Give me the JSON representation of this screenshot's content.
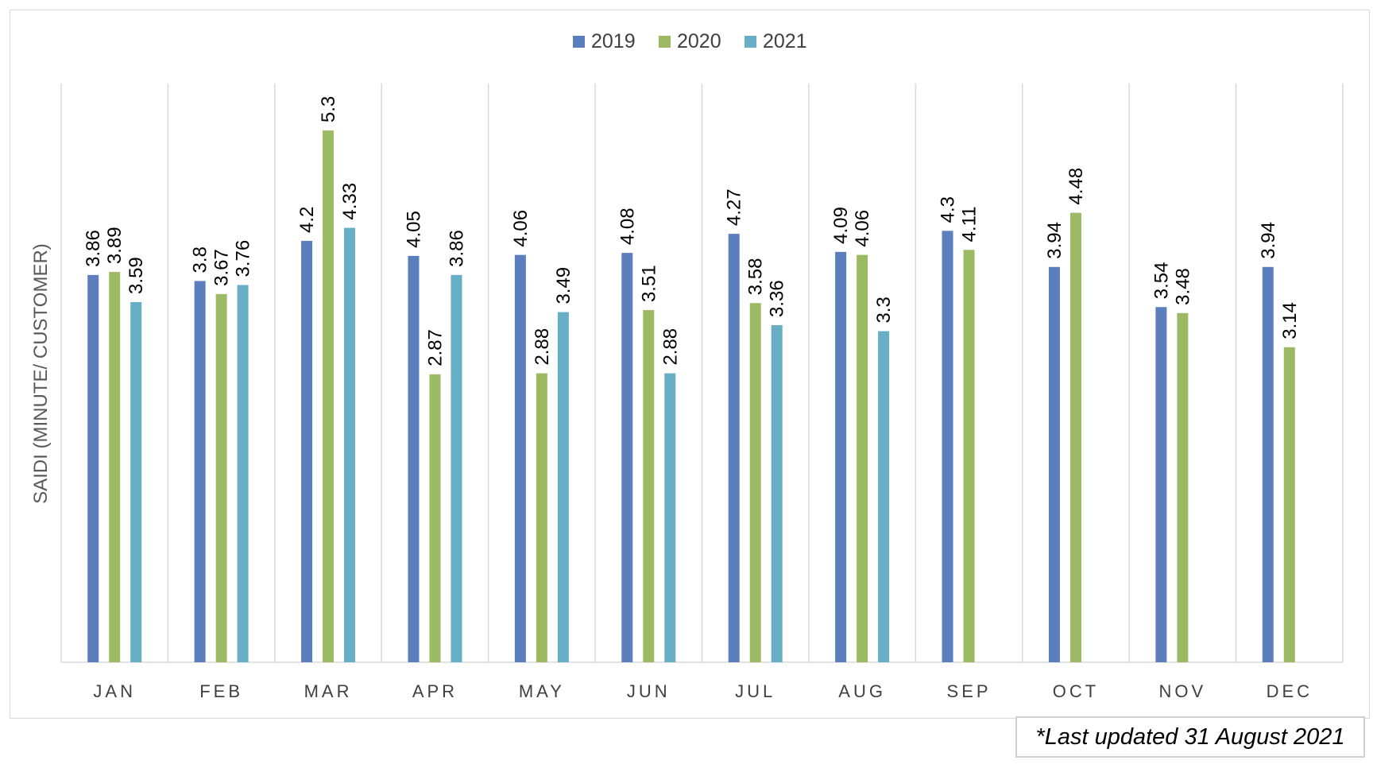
{
  "chart_data": {
    "type": "bar",
    "title": "",
    "xlabel": "",
    "ylabel": "SAIDI (MINUTE/ CUSTOMER)",
    "ylim": [
      0,
      6
    ],
    "grid": "vertical category separators",
    "legend_position": "top-center",
    "categories": [
      "JAN",
      "FEB",
      "MAR",
      "APR",
      "MAY",
      "JUN",
      "JUL",
      "AUG",
      "SEP",
      "OCT",
      "NOV",
      "DEC"
    ],
    "series": [
      {
        "name": "2019",
        "color": "#5b7fbd",
        "values": [
          3.86,
          3.8,
          4.2,
          4.05,
          4.06,
          4.08,
          4.27,
          4.09,
          4.3,
          3.94,
          3.54,
          3.94
        ],
        "labels": [
          "3.86",
          "3.8",
          "4.2",
          "4.05",
          "4.06",
          "4.08",
          "4.27",
          "4.09",
          "4.3",
          "3.94",
          "3.54",
          "3.94"
        ]
      },
      {
        "name": "2020",
        "color": "#9cba63",
        "values": [
          3.89,
          3.67,
          5.3,
          2.87,
          2.88,
          3.51,
          3.58,
          4.06,
          4.11,
          4.48,
          3.48,
          3.14
        ],
        "labels": [
          "3.89",
          "3.67",
          "5.3",
          "2.87",
          "2.88",
          "3.51",
          "3.58",
          "4.06",
          "4.11",
          "4.48",
          "3.48",
          "3.14"
        ]
      },
      {
        "name": "2021",
        "color": "#67aec6",
        "values": [
          3.59,
          3.76,
          4.33,
          3.86,
          3.49,
          2.88,
          3.36,
          3.3,
          null,
          null,
          null,
          null
        ],
        "labels": [
          "3.59",
          "3.76",
          "4.33",
          "3.86",
          "3.49",
          "2.88",
          "3.36",
          "3.3",
          null,
          null,
          null,
          null
        ]
      }
    ]
  },
  "footnote": "*Last updated 31 August 2021"
}
